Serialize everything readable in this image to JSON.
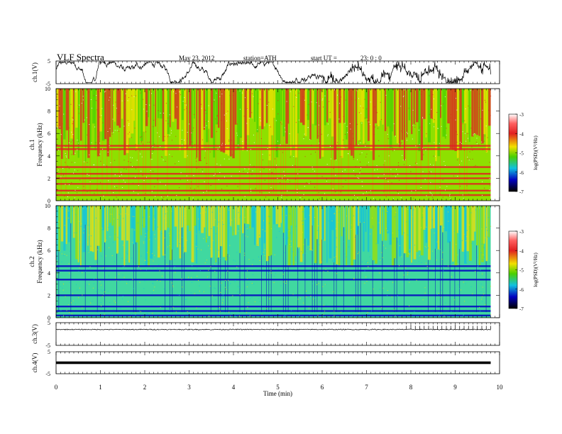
{
  "header": {
    "title": "VLF  Spectra",
    "date": "May 23, 2012",
    "station": "station=ATH",
    "start_label": "start  UT  =",
    "start_value": "23: 0  : 0"
  },
  "chart_data": [
    {
      "type": "line",
      "name": "ch1-voltage",
      "ylabel": "ch.1(V)",
      "ylim": [
        -5,
        5
      ],
      "yticks": [
        "5",
        "-5"
      ],
      "xlim": [
        0,
        10
      ],
      "signal": "noisy fluctuations between about -4.5 and 4.5 V"
    },
    {
      "type": "heatmap",
      "name": "ch1-spectrogram",
      "ylabel_top": "ch.1",
      "ylabel": "Frequency  (kHz)",
      "ylim": [
        0,
        10
      ],
      "yticks": [
        "0",
        "2",
        "4",
        "6",
        "8",
        "10"
      ],
      "xlim": [
        0,
        9.8
      ],
      "colorbar": {
        "label": "log(PSD)(V²/Hz)",
        "range": [
          -7,
          -3
        ],
        "ticks": [
          "-3",
          "-4",
          "-5",
          "-6",
          "-7"
        ]
      },
      "bands_khz": [
        0.5,
        0.9,
        1.5,
        2.0,
        2.4,
        3.0,
        4.6,
        4.9
      ]
    },
    {
      "type": "heatmap",
      "name": "ch2-spectrogram",
      "ylabel_top": "ch.2",
      "ylabel": "Frequency  (kHz)",
      "ylim": [
        0,
        10
      ],
      "yticks": [
        "0",
        "2",
        "4",
        "6",
        "8",
        "10"
      ],
      "xlim": [
        0,
        9.8
      ],
      "colorbar": {
        "label": "log(PSD)(V²/Hz)",
        "range": [
          -7,
          -3
        ],
        "ticks": [
          "-3",
          "-4",
          "-5",
          "-6",
          "-7"
        ]
      },
      "bands_khz": [
        0.2,
        0.6,
        1.0,
        2.0,
        3.4,
        4.2,
        4.6
      ]
    },
    {
      "type": "line",
      "name": "ch3-voltage",
      "ylabel": "ch.3(V)",
      "ylim": [
        -5,
        5
      ],
      "yticks": [
        "5",
        "-5"
      ],
      "xlim": [
        0,
        10
      ],
      "spikes_from_min": 7.9
    },
    {
      "type": "line",
      "name": "ch4-voltage",
      "ylabel": "ch.4(V)",
      "ylim": [
        -5,
        5
      ],
      "yticks": [
        "5",
        "-5"
      ],
      "xlim": [
        0,
        10
      ]
    }
  ],
  "x_axis": {
    "label": "Time  (min)",
    "ticks": [
      "0",
      "1",
      "2",
      "3",
      "4",
      "5",
      "6",
      "7",
      "8",
      "9",
      "10"
    ]
  },
  "colors": {
    "high": "#e02020",
    "mid": "#f2e000",
    "low": "#4ad000",
    "lower": "#10c0e0",
    "lowest": "#0000c0",
    "min": "#000000"
  }
}
